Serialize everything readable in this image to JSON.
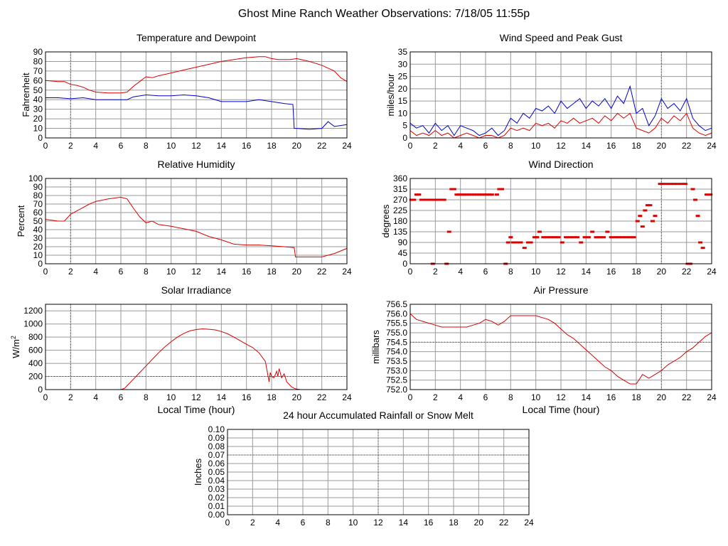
{
  "page_title": "Ghost Mine Ranch Weather Observations: 7/18/05 11:55p",
  "colors": {
    "red": "#dd0000",
    "blue": "#0000cc",
    "grid": "#9a9a9a",
    "refline": "#444444"
  },
  "chart_data": [
    {
      "id": "temp",
      "type": "line",
      "title": "Temperature and Dewpoint",
      "xlabel": "",
      "ylabel": "Fahrenheit",
      "ylim": [
        0,
        90
      ],
      "yticks": [
        "0",
        "10",
        "20",
        "30",
        "40",
        "50",
        "60",
        "70",
        "80",
        "90"
      ],
      "xlim": [
        0,
        24
      ],
      "xticks": [
        "0",
        "2",
        "4",
        "6",
        "8",
        "10",
        "12",
        "14",
        "16",
        "18",
        "20",
        "22",
        "24"
      ],
      "series": [
        {
          "color": "#dd0000",
          "x": [
            0,
            1,
            1.5,
            2,
            2.5,
            3,
            3.5,
            4,
            5,
            6,
            6.5,
            7,
            7.5,
            8,
            8.5,
            9,
            10,
            11,
            12,
            13,
            14,
            15,
            16,
            17,
            17.5,
            18,
            18.5,
            19,
            19.5,
            20,
            21,
            22,
            23,
            23.5,
            24
          ],
          "y": [
            60,
            59,
            59,
            56,
            55,
            53,
            50,
            48,
            47,
            47,
            48,
            54,
            59,
            64,
            63,
            65,
            68,
            71,
            74,
            77,
            80,
            82,
            84,
            85,
            85,
            83,
            82,
            82,
            82,
            83,
            80,
            76,
            70,
            63,
            59
          ]
        },
        {
          "color": "#0000cc",
          "x": [
            0,
            1,
            2,
            3,
            4,
            5,
            6,
            6.5,
            7,
            8,
            9,
            10,
            11,
            12,
            13,
            14,
            15,
            16,
            17,
            18,
            19,
            19.7,
            19.8,
            20,
            21,
            22,
            22.5,
            23,
            24
          ],
          "y": [
            42,
            42,
            41,
            42,
            40,
            40,
            40,
            40,
            43,
            45,
            44,
            44,
            45,
            44,
            42,
            38,
            38,
            38,
            40,
            38,
            36,
            35,
            10,
            10,
            9,
            10,
            17,
            12,
            14
          ]
        }
      ]
    },
    {
      "id": "wind",
      "type": "line",
      "title": "Wind Speed and Peak Gust",
      "xlabel": "",
      "ylabel": "miles/hour",
      "ylim": [
        0,
        35
      ],
      "yticks": [
        "0",
        "5",
        "10",
        "15",
        "20",
        "25",
        "30",
        "35"
      ],
      "xlim": [
        0,
        24
      ],
      "xticks": [
        "0",
        "2",
        "4",
        "6",
        "8",
        "10",
        "12",
        "14",
        "16",
        "18",
        "20",
        "22",
        "24"
      ],
      "series": [
        {
          "color": "#0000cc",
          "x": [
            0,
            0.5,
            1,
            1.5,
            2,
            2.5,
            3,
            3.5,
            4,
            4.5,
            5,
            5.5,
            6,
            6.5,
            7,
            7.5,
            8,
            8.5,
            9,
            9.5,
            10,
            10.5,
            11,
            11.5,
            12,
            12.5,
            13,
            13.5,
            14,
            14.5,
            15,
            15.5,
            16,
            16.5,
            17,
            17.5,
            18,
            18.5,
            19,
            19.5,
            20,
            20.5,
            21,
            21.5,
            22,
            22.5,
            23,
            23.5,
            24
          ],
          "y": [
            6,
            4,
            5,
            2,
            6,
            3,
            5,
            1,
            5,
            4,
            3,
            1,
            2,
            4,
            1,
            3,
            8,
            6,
            10,
            8,
            12,
            11,
            13,
            10,
            15,
            12,
            14,
            16,
            12,
            15,
            13,
            16,
            12,
            17,
            14,
            21,
            10,
            12,
            5,
            9,
            16,
            12,
            14,
            11,
            16,
            8,
            5,
            3,
            4
          ]
        },
        {
          "color": "#dd0000",
          "x": [
            0,
            0.5,
            1,
            1.5,
            2,
            2.5,
            3,
            3.5,
            4,
            4.5,
            5,
            5.5,
            6,
            6.5,
            7,
            7.5,
            8,
            8.5,
            9,
            9.5,
            10,
            10.5,
            11,
            11.5,
            12,
            12.5,
            13,
            13.5,
            14,
            14.5,
            15,
            15.5,
            16,
            16.5,
            17,
            17.5,
            18,
            18.5,
            19,
            19.5,
            20,
            20.5,
            21,
            21.5,
            22,
            22.5,
            23,
            23.5,
            24
          ],
          "y": [
            3,
            1,
            2,
            1,
            3,
            1,
            2,
            0,
            1,
            2,
            1,
            0,
            1,
            1,
            0,
            1,
            4,
            3,
            4,
            3,
            6,
            5,
            6,
            4,
            7,
            6,
            8,
            6,
            7,
            8,
            6,
            9,
            7,
            10,
            8,
            10,
            4,
            3,
            2,
            4,
            8,
            6,
            9,
            7,
            10,
            4,
            2,
            1,
            2
          ]
        }
      ]
    },
    {
      "id": "rh",
      "type": "line",
      "title": "Relative Humidity",
      "xlabel": "",
      "ylabel": "Percent",
      "ylim": [
        0,
        100
      ],
      "yticks": [
        "0",
        "10",
        "20",
        "30",
        "40",
        "50",
        "60",
        "70",
        "80",
        "90",
        "100"
      ],
      "xlim": [
        0,
        24
      ],
      "xticks": [
        "0",
        "2",
        "4",
        "6",
        "8",
        "10",
        "12",
        "14",
        "16",
        "18",
        "20",
        "22",
        "24"
      ],
      "series": [
        {
          "color": "#dd0000",
          "x": [
            0,
            0.5,
            1,
            1.5,
            2,
            2.5,
            3,
            3.5,
            4,
            5,
            6,
            6.5,
            7,
            7.5,
            8,
            8.5,
            9,
            10,
            11,
            12,
            13,
            14,
            15,
            16,
            17,
            18,
            19,
            19.8,
            19.9,
            21,
            22,
            23,
            24
          ],
          "y": [
            52,
            51,
            50,
            50,
            58,
            62,
            66,
            70,
            73,
            76,
            78,
            76,
            65,
            55,
            48,
            50,
            46,
            44,
            41,
            38,
            32,
            28,
            23,
            22,
            22,
            21,
            20,
            19,
            8,
            8,
            8,
            12,
            18
          ]
        }
      ]
    },
    {
      "id": "wdir",
      "type": "scatter",
      "title": "Wind Direction",
      "xlabel": "",
      "ylabel": "degrees",
      "ylim": [
        0,
        360
      ],
      "yticks": [
        "0",
        "45",
        "90",
        "135",
        "180",
        "225",
        "270",
        "315",
        "360"
      ],
      "xlim": [
        0,
        24
      ],
      "xticks": [
        "0",
        "2",
        "4",
        "6",
        "8",
        "10",
        "12",
        "14",
        "16",
        "18",
        "20",
        "22",
        "24"
      ],
      "series": [
        {
          "color": "#dd0000",
          "x": [
            0.1,
            0.3,
            0.5,
            0.7,
            0.9,
            1.1,
            1.3,
            1.5,
            1.7,
            1.9,
            2.1,
            2.3,
            2.5,
            2.7,
            1.8,
            2.9,
            3.1,
            3.3,
            3.5,
            3.7,
            3.9,
            4.1,
            4.3,
            4.5,
            4.7,
            4.9,
            5.1,
            5.3,
            5.5,
            5.7,
            5.9,
            6.1,
            6.3,
            6.5,
            6.9,
            7.1,
            7.3,
            7.6,
            7.8,
            8.0,
            8.2,
            8.5,
            8.8,
            9.1,
            9.4,
            9.6,
            9.9,
            10.1,
            10.3,
            10.6,
            10.9,
            11.2,
            11.5,
            11.8,
            12.1,
            12.4,
            12.7,
            13.0,
            13.3,
            13.6,
            13.9,
            14.2,
            14.5,
            14.8,
            15.1,
            15.4,
            15.7,
            16.0,
            16.3,
            16.6,
            16.9,
            17.2,
            17.5,
            17.8,
            18.1,
            18.3,
            18.5,
            18.7,
            18.9,
            19.1,
            19.3,
            19.5,
            19.9,
            20.1,
            20.4,
            20.7,
            21.0,
            21.3,
            21.6,
            21.9,
            22.1,
            22.3,
            22.5,
            22.7,
            22.9,
            23.1,
            23.3,
            23.6,
            23.9
          ],
          "y": [
            270,
            270,
            292,
            292,
            270,
            270,
            270,
            270,
            270,
            270,
            270,
            270,
            270,
            270,
            0,
            0,
            135,
            315,
            315,
            292,
            292,
            292,
            292,
            292,
            292,
            292,
            292,
            292,
            292,
            292,
            292,
            292,
            292,
            292,
            292,
            315,
            315,
            0,
            90,
            112,
            90,
            90,
            90,
            67,
            90,
            90,
            112,
            112,
            135,
            112,
            112,
            112,
            112,
            112,
            90,
            112,
            112,
            112,
            112,
            90,
            112,
            112,
            135,
            112,
            112,
            112,
            135,
            112,
            112,
            112,
            112,
            112,
            112,
            112,
            180,
            202,
            157,
            225,
            247,
            247,
            180,
            202,
            337,
            337,
            337,
            337,
            337,
            337,
            337,
            337,
            0,
            0,
            315,
            270,
            202,
            90,
            67,
            292,
            292
          ]
        }
      ]
    },
    {
      "id": "solar",
      "type": "line",
      "title": "Solar Irradiance",
      "xlabel": "Local Time (hour)",
      "ylabel": "W/m",
      "ylabel_sup": "2",
      "ylim": [
        0,
        1300
      ],
      "yticks": [
        "0",
        "200",
        "400",
        "600",
        "800",
        "1000",
        "1200"
      ],
      "xlim": [
        0,
        24
      ],
      "xticks": [
        "0",
        "2",
        "4",
        "6",
        "8",
        "10",
        "12",
        "14",
        "16",
        "18",
        "20",
        "22",
        "24"
      ],
      "series": [
        {
          "color": "#dd0000",
          "x": [
            0,
            6,
            6.3,
            6.5,
            7,
            7.5,
            8,
            8.5,
            9,
            9.5,
            10,
            10.5,
            11,
            11.5,
            12,
            12.5,
            13,
            13.5,
            14,
            14.5,
            15,
            15.5,
            16,
            16.5,
            17,
            17.5,
            17.8,
            17.9,
            18.0,
            18.2,
            18.4,
            18.5,
            18.6,
            18.8,
            19.0,
            19.2,
            19.4,
            19.6,
            19.8,
            20,
            20.3,
            24
          ],
          "y": [
            0,
            0,
            20,
            60,
            160,
            260,
            360,
            460,
            560,
            650,
            730,
            800,
            855,
            895,
            915,
            925,
            920,
            910,
            885,
            850,
            800,
            745,
            690,
            640,
            560,
            430,
            120,
            260,
            200,
            180,
            280,
            200,
            320,
            180,
            240,
            120,
            80,
            40,
            20,
            8,
            0,
            0
          ]
        }
      ]
    },
    {
      "id": "pressure",
      "type": "line",
      "title": "Air Pressure",
      "xlabel": "Local Time (hour)",
      "ylabel": "millibars",
      "ylim": [
        752.0,
        756.5
      ],
      "yticks": [
        "752.0",
        "752.5",
        "753.0",
        "753.5",
        "754.0",
        "754.5",
        "755.0",
        "755.5",
        "756.0",
        "756.5"
      ],
      "xlim": [
        0,
        24
      ],
      "xticks": [
        "0",
        "2",
        "4",
        "6",
        "8",
        "10",
        "12",
        "14",
        "16",
        "18",
        "20",
        "22",
        "24"
      ],
      "series": [
        {
          "color": "#dd0000",
          "x": [
            0,
            0.5,
            1,
            1.5,
            2,
            2.5,
            3,
            3.5,
            4,
            4.5,
            5,
            5.5,
            6,
            6.5,
            7,
            7.5,
            8,
            8.5,
            9,
            9.5,
            10,
            10.5,
            11,
            11.5,
            12,
            12.5,
            13,
            13.5,
            14,
            14.5,
            15,
            15.5,
            16,
            16.5,
            17,
            17.5,
            18,
            18.5,
            19,
            19.5,
            20,
            20.5,
            21,
            21.5,
            22,
            22.5,
            23,
            23.5,
            24
          ],
          "y": [
            756.0,
            755.7,
            755.6,
            755.5,
            755.4,
            755.3,
            755.3,
            755.3,
            755.3,
            755.3,
            755.4,
            755.5,
            755.7,
            755.6,
            755.4,
            755.6,
            755.9,
            755.9,
            755.9,
            755.9,
            755.9,
            755.8,
            755.7,
            755.5,
            755.2,
            754.9,
            754.7,
            754.4,
            754.1,
            753.8,
            753.5,
            753.2,
            753.0,
            752.7,
            752.5,
            752.3,
            752.3,
            752.8,
            752.6,
            752.8,
            753.0,
            753.3,
            753.5,
            753.7,
            754.0,
            754.2,
            754.5,
            754.8,
            755.0
          ]
        }
      ]
    },
    {
      "id": "rain",
      "type": "line",
      "title": "24 hour Accumulated Rainfall or Snow Melt",
      "xlabel": "",
      "ylabel": "Inches",
      "ylim": [
        0,
        0.1
      ],
      "yticks": [
        "0.00",
        "0.01",
        "0.02",
        "0.03",
        "0.04",
        "0.05",
        "0.06",
        "0.07",
        "0.08",
        "0.09",
        "0.10"
      ],
      "xlim": [
        0,
        24
      ],
      "xticks": [
        "0",
        "2",
        "4",
        "6",
        "8",
        "10",
        "12",
        "14",
        "16",
        "18",
        "20",
        "22",
        "24"
      ],
      "series": [
        {
          "color": "#dd0000",
          "x": [
            0,
            24
          ],
          "y": [
            0,
            0
          ]
        }
      ]
    }
  ]
}
